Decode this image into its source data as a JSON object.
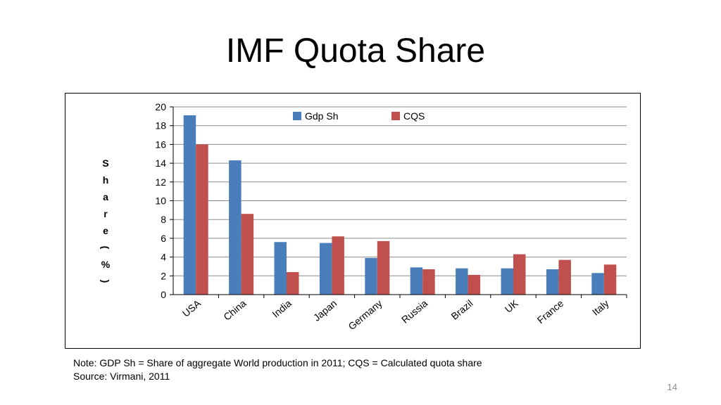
{
  "slide": {
    "title": "IMF Quota Share",
    "note_line1": "Note: GDP Sh = Share of aggregate World production in 2011; CQS = Calculated quota share",
    "note_line2": "Source:  Virmani, 2011",
    "page_number": "14"
  },
  "chart_data": {
    "type": "bar",
    "title": "",
    "xlabel": "",
    "ylabel": "Share (%)",
    "ylim": [
      0,
      20
    ],
    "yticks": [
      0,
      2,
      4,
      6,
      8,
      10,
      12,
      14,
      16,
      18,
      20
    ],
    "grid": true,
    "legend_position": "top",
    "categories": [
      "USA",
      "China",
      "India",
      "Japan",
      "Germany",
      "Russia",
      "Brazil",
      "UK",
      "France",
      "Italy"
    ],
    "series": [
      {
        "name": "Gdp Sh",
        "color": "#4a7ebb",
        "values": [
          19.1,
          14.3,
          5.6,
          5.5,
          3.9,
          2.9,
          2.8,
          2.8,
          2.7,
          2.3
        ]
      },
      {
        "name": "CQS",
        "color": "#c0504d",
        "values": [
          16.0,
          8.6,
          2.4,
          6.2,
          5.7,
          2.7,
          2.1,
          4.3,
          3.7,
          3.2
        ]
      }
    ]
  }
}
